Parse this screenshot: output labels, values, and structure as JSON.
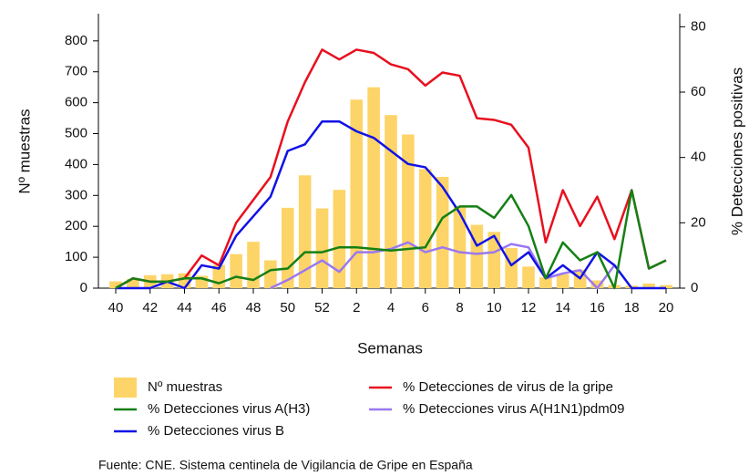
{
  "chart_data": {
    "type": "bar",
    "x_label": "Semanas",
    "y_label": "Nº muestras",
    "y2_label": "% Detecciones positivas",
    "source": "Fuente: CNE. Sistema centinela de Vigilancia de Gripe en España",
    "categories": [
      "40",
      null,
      "42",
      null,
      "44",
      null,
      "46",
      null,
      "48",
      null,
      "50",
      null,
      "52",
      null,
      "2",
      null,
      "4",
      null,
      "6",
      null,
      "8",
      null,
      "10",
      null,
      "12",
      null,
      "14",
      null,
      "16",
      null,
      "18",
      null,
      "20"
    ],
    "ylim": [
      0,
      888
    ],
    "yticks": [
      0,
      100,
      200,
      300,
      400,
      500,
      600,
      700,
      800
    ],
    "y2lim": [
      0,
      84
    ],
    "y2ticks": [
      0,
      20,
      40,
      60,
      80
    ],
    "series": [
      {
        "name": "Nº muestras",
        "type": "bar",
        "color": "#fdd468",
        "values": [
          22,
          30,
          42,
          45,
          48,
          40,
          75,
          110,
          150,
          90,
          260,
          365,
          258,
          318,
          610,
          650,
          560,
          497,
          385,
          360,
          265,
          205,
          182,
          130,
          70,
          35,
          45,
          60,
          25,
          10,
          8,
          15,
          10
        ]
      },
      {
        "name": "% Detecciones virus A(H3)",
        "type": "line",
        "axis": "y2",
        "color": "#158015",
        "values": [
          0,
          3,
          2,
          2,
          3,
          3,
          1.5,
          3.5,
          2.5,
          5.5,
          6,
          11,
          11,
          12.5,
          12.5,
          12,
          11.5,
          12,
          12.5,
          21.5,
          25,
          25,
          21.5,
          28.5,
          19,
          3,
          14,
          8.5,
          11,
          0,
          30,
          6,
          8.5
        ]
      },
      {
        "name": "% Detecciones virus B",
        "type": "line",
        "axis": "y2",
        "color": "#1212e6",
        "values": [
          0,
          0,
          0,
          2,
          0,
          7,
          6,
          16,
          22,
          28,
          42,
          44,
          51,
          51,
          48,
          46,
          42,
          38,
          37,
          31,
          23,
          13,
          16,
          7,
          11,
          3,
          7,
          3,
          11,
          7,
          0,
          0,
          0
        ]
      },
      {
        "name": "% Detecciones de virus de la gripe",
        "type": "line",
        "axis": "y2",
        "color": "#e8101e",
        "values": [
          0,
          3,
          2,
          2,
          3,
          10,
          7,
          20,
          27,
          34,
          51,
          63,
          73,
          70,
          73,
          72,
          68.5,
          67,
          62,
          66,
          65,
          52,
          51.5,
          50,
          43,
          14,
          30,
          19,
          28,
          15,
          30,
          6,
          8.5
        ]
      },
      {
        "name": "% Detecciones virus A(H1N1)pdm09",
        "type": "line",
        "axis": "y2",
        "color": "#9a78f0",
        "values": [
          null,
          null,
          null,
          null,
          null,
          null,
          null,
          null,
          null,
          0,
          2.5,
          5.5,
          8.5,
          5,
          11,
          11,
          12,
          14,
          11,
          12.5,
          11,
          10.5,
          11,
          13.5,
          12.5,
          3,
          4.5,
          5.5,
          0,
          7,
          null,
          null,
          null
        ]
      }
    ]
  }
}
